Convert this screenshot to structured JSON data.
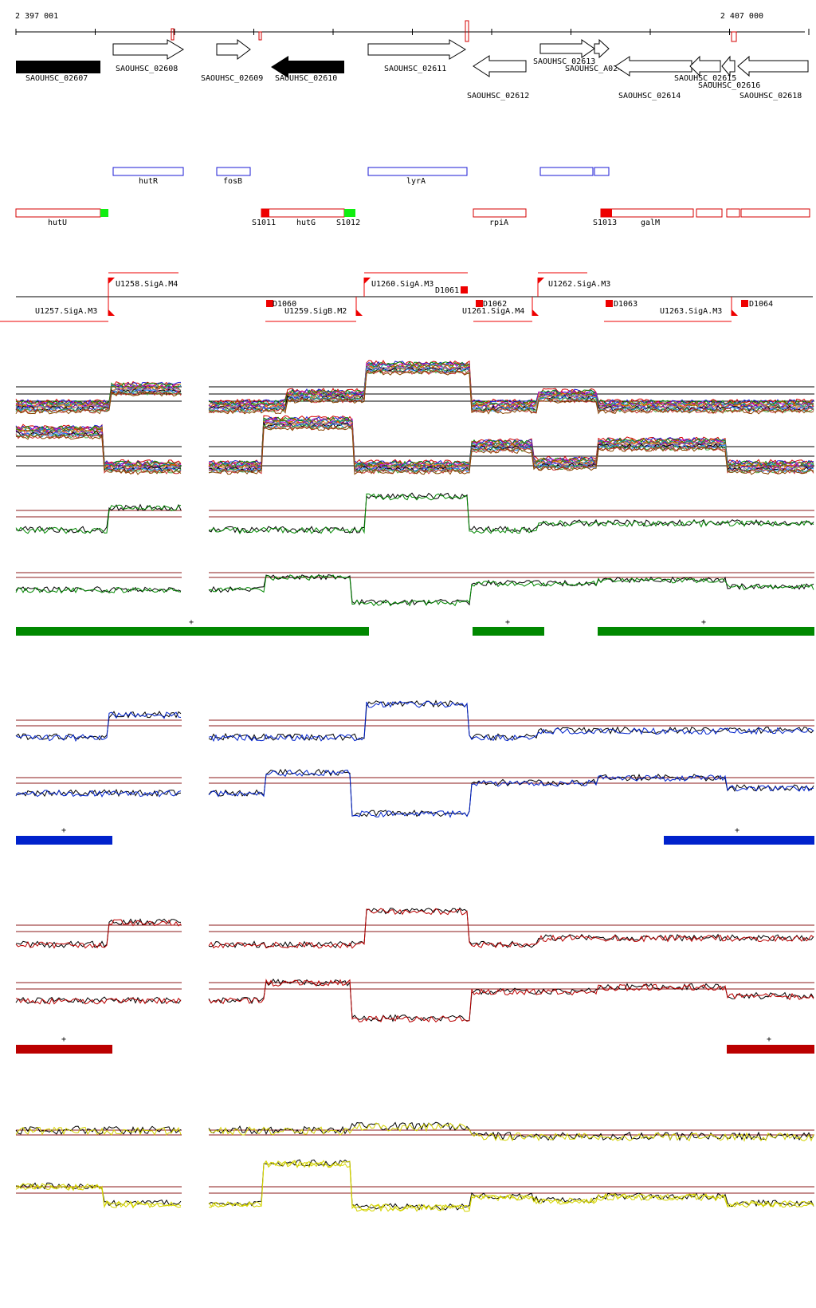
{
  "coordinates": {
    "start": "2 397 001",
    "end": "2 407 000"
  },
  "colors": {
    "gene_outline": "#000000",
    "gene_filled": "#000000",
    "annotation": "#1a1ad6",
    "transcript": "#d40000",
    "signal_green": "#11ee11",
    "promoter": "#ee0000",
    "cond_green": "#008800",
    "cond_blue": "#0022cc",
    "cond_red": "#bb0000",
    "cond_yellow": "#d4d400",
    "threshold": "#8b1a1a"
  },
  "genes": [
    {
      "label": "SAOUHSC_02607"
    },
    {
      "label": "SAOUHSC_02608"
    },
    {
      "label": "SAOUHSC_02609"
    },
    {
      "label": "SAOUHSC_02610"
    },
    {
      "label": "SAOUHSC_02611"
    },
    {
      "label": "SAOUHSC_02612"
    },
    {
      "label": "SAOUHSC_02613"
    },
    {
      "label": "SAOUHSC_A02483"
    },
    {
      "label": "SAOUHSC_02614"
    },
    {
      "label": "SAOUHSC_02615"
    },
    {
      "label": "SAOUHSC_02616"
    },
    {
      "label": "SAOUHSC_02618"
    }
  ],
  "annotations": [
    {
      "label": "hutR"
    },
    {
      "label": "fosB"
    },
    {
      "label": "lyrA"
    }
  ],
  "transcripts": [
    {
      "label": "hutU"
    },
    {
      "label": "hutG"
    },
    {
      "label": "rpiA"
    },
    {
      "label": "galM"
    }
  ],
  "signals": [
    {
      "label": "S1011"
    },
    {
      "label": "S1012"
    },
    {
      "label": "S1013"
    }
  ],
  "promoters": [
    {
      "label": "U1257.SigA.M3"
    },
    {
      "label": "U1258.SigA.M4"
    },
    {
      "label": "U1259.SigB.M2"
    },
    {
      "label": "U1260.SigA.M3"
    },
    {
      "label": "U1261.SigA.M4"
    },
    {
      "label": "U1262.SigA.M3"
    },
    {
      "label": "U1263.SigA.M3"
    },
    {
      "label": "D1060"
    },
    {
      "label": "D1061"
    },
    {
      "label": "D1062"
    },
    {
      "label": "D1063"
    },
    {
      "label": "D1064"
    }
  ],
  "strand_marks": {
    "green": [
      "+",
      "+",
      "+"
    ],
    "blue": [
      "+",
      "+"
    ],
    "red": [
      "+",
      "+"
    ]
  }
}
